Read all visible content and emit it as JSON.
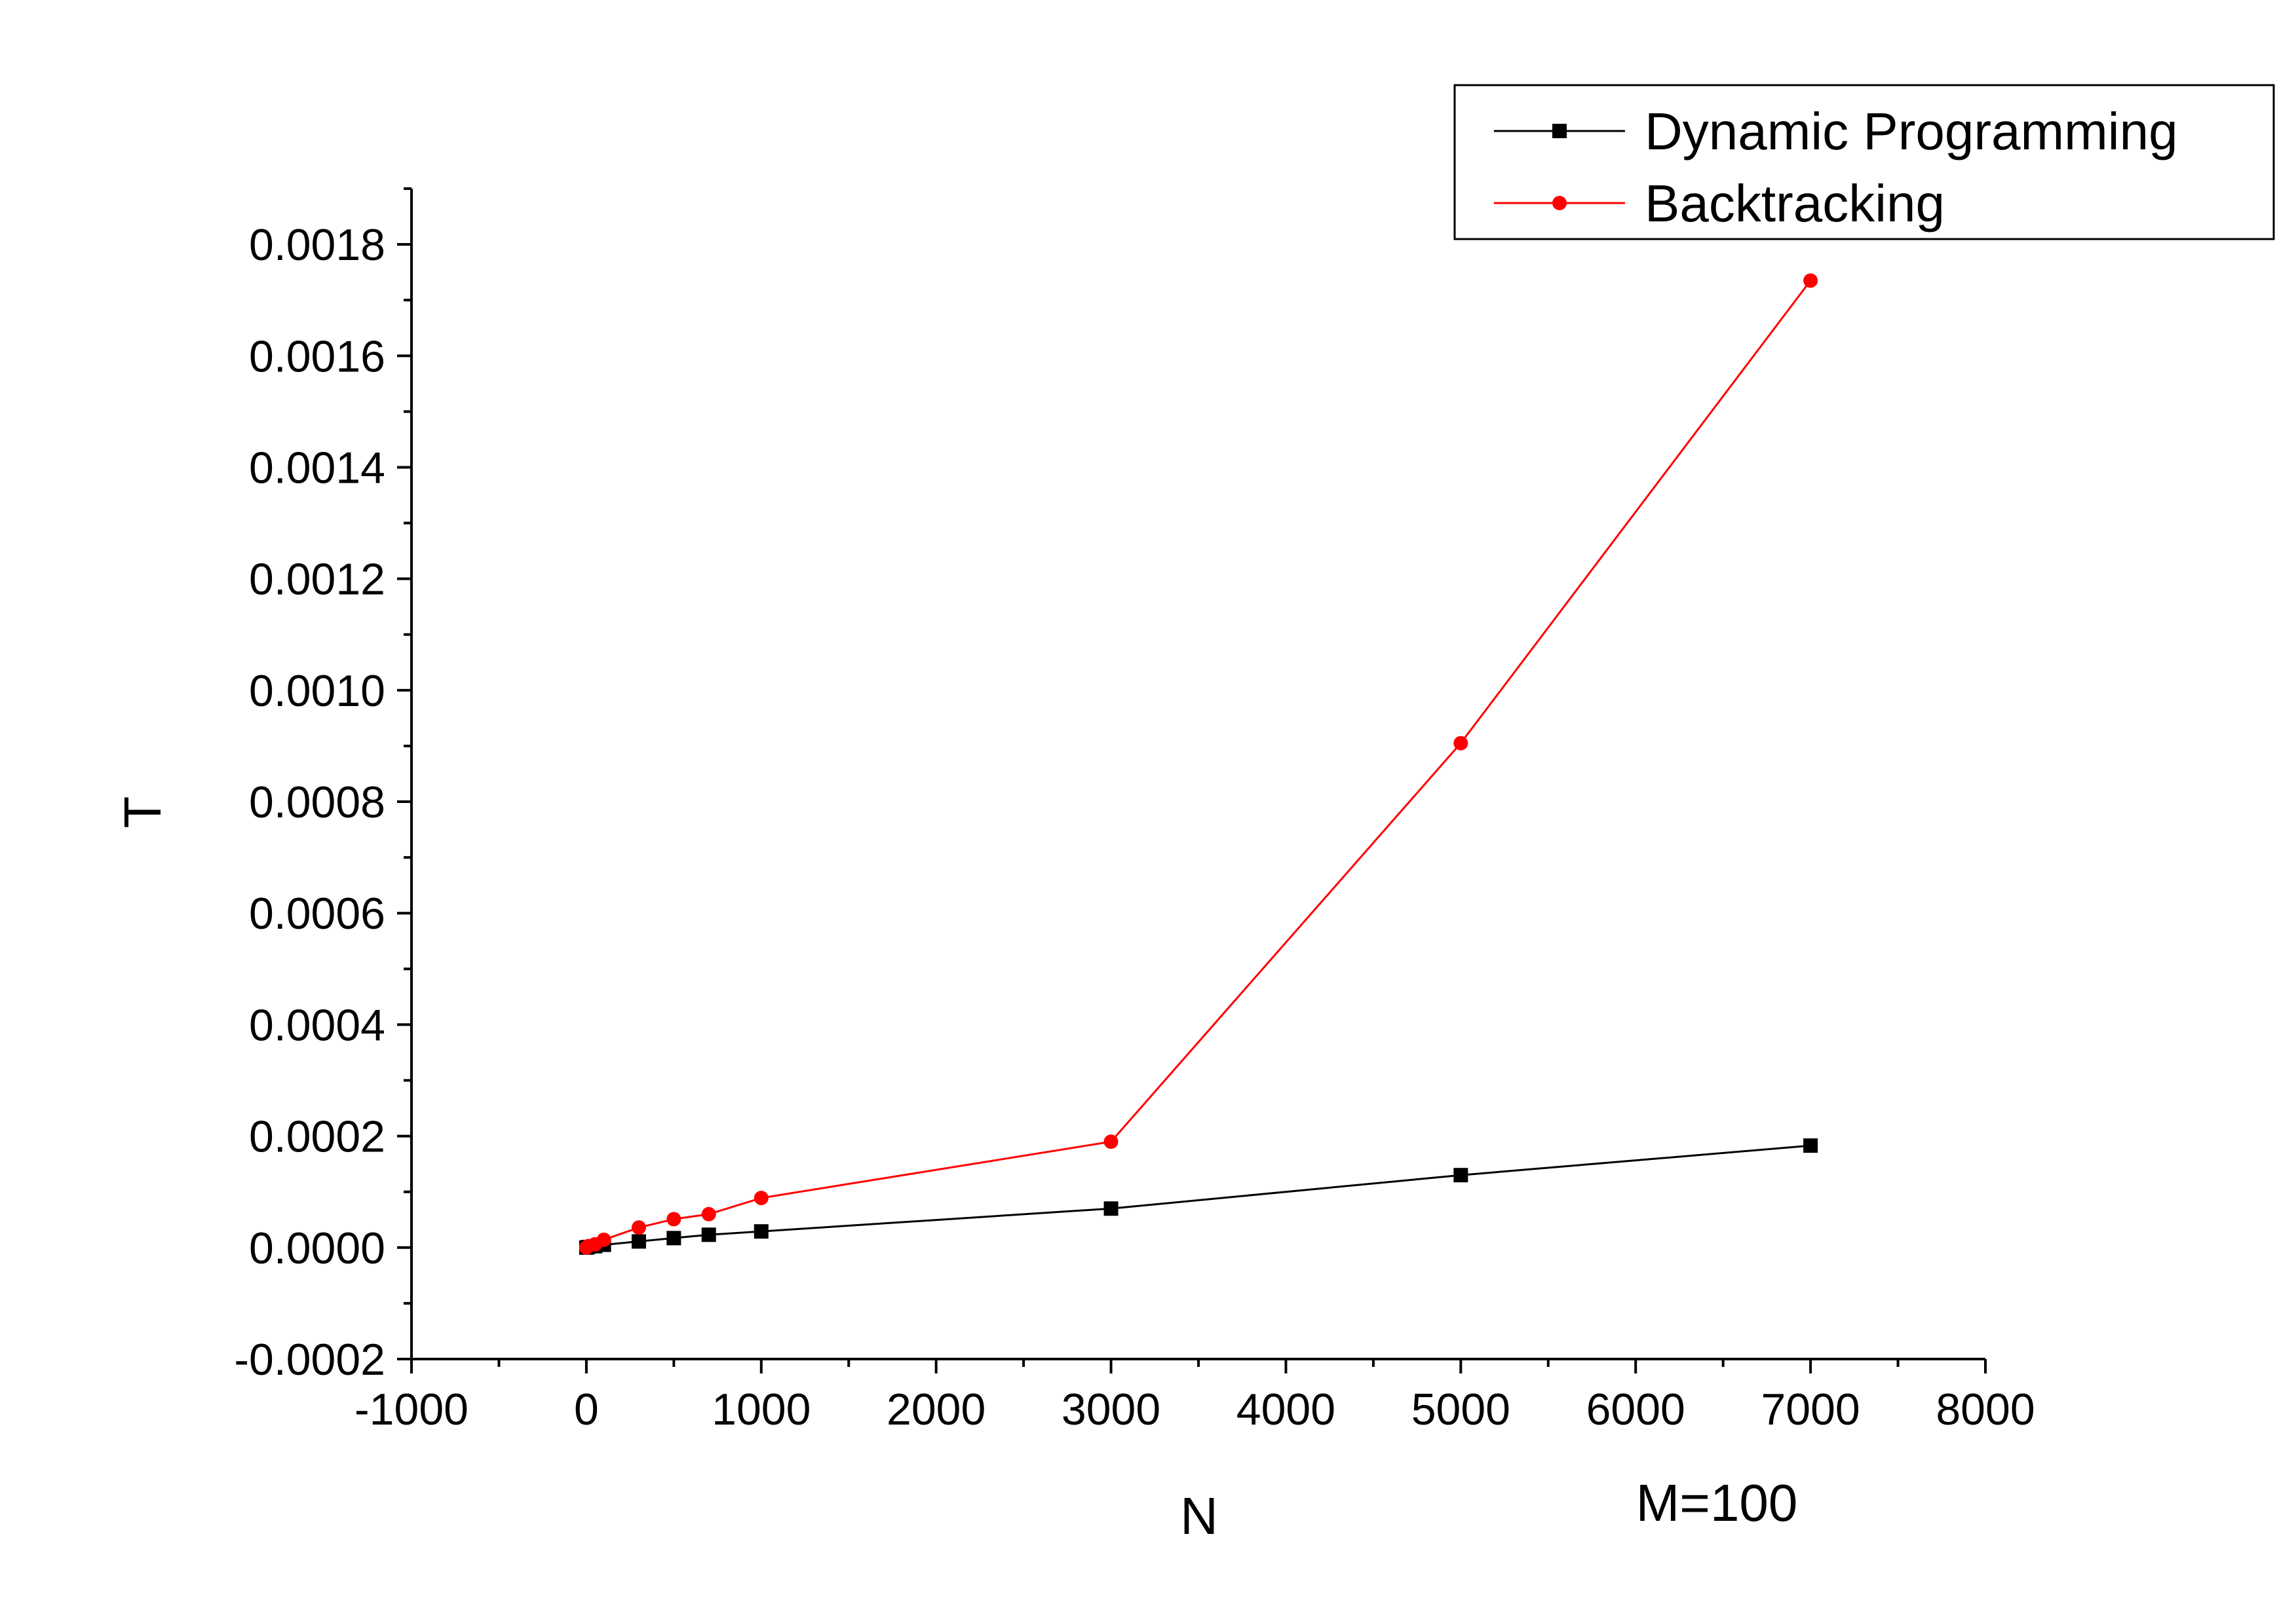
{
  "chart_data": {
    "type": "line",
    "title": "",
    "xlabel": "N",
    "ylabel": "T",
    "annotation": "M=100",
    "xlim": [
      -1000,
      8000
    ],
    "ylim": [
      -0.0002,
      0.0019
    ],
    "x_ticks": [
      -1000,
      0,
      1000,
      2000,
      3000,
      4000,
      5000,
      6000,
      7000,
      8000
    ],
    "x_tick_labels": [
      "-1000",
      "0",
      "1000",
      "2000",
      "3000",
      "4000",
      "5000",
      "6000",
      "7000",
      "8000"
    ],
    "y_ticks": [
      -0.0002,
      0.0,
      0.0002,
      0.0004,
      0.0006,
      0.0008,
      0.001,
      0.0012,
      0.0014,
      0.0016,
      0.0018
    ],
    "y_tick_labels": [
      "-0.0002",
      "0.0000",
      "0.0002",
      "0.0004",
      "0.0006",
      "0.0008",
      "0.0010",
      "0.0012",
      "0.0014",
      "0.0016",
      "0.0018"
    ],
    "grid": false,
    "legend_position": "top-right",
    "series": [
      {
        "name": "Dynamic Programming",
        "color": "#000000",
        "marker": "square",
        "points": [
          [
            0,
            0.0
          ],
          [
            10,
            1e-06
          ],
          [
            50,
            2.5e-06
          ],
          [
            100,
            5e-06
          ],
          [
            300,
            1.1e-05
          ],
          [
            500,
            1.7e-05
          ],
          [
            700,
            2.3e-05
          ],
          [
            1000,
            2.9e-05
          ],
          [
            3000,
            7e-05
          ],
          [
            5000,
            0.00013
          ],
          [
            7000,
            0.000183
          ]
        ]
      },
      {
        "name": "Backtracking",
        "color": "#ff0000",
        "marker": "circle",
        "points": [
          [
            0,
            0.0
          ],
          [
            10,
            2.5e-06
          ],
          [
            50,
            6e-06
          ],
          [
            100,
            1.4e-05
          ],
          [
            300,
            3.6e-05
          ],
          [
            500,
            5.1e-05
          ],
          [
            700,
            6e-05
          ],
          [
            1000,
            8.9e-05
          ],
          [
            3000,
            0.00019
          ],
          [
            5000,
            0.000905
          ],
          [
            7000,
            0.001735
          ]
        ]
      }
    ]
  }
}
